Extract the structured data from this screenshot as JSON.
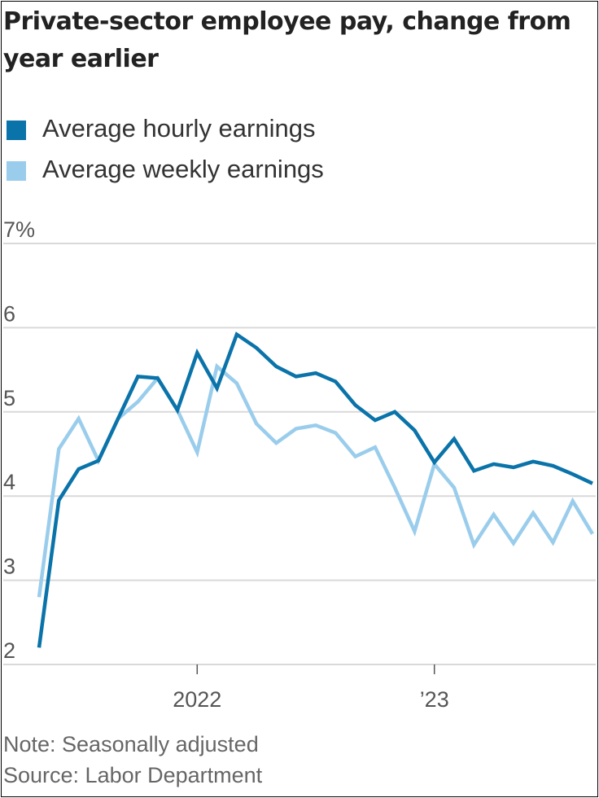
{
  "title": "Private-sector employee pay, change from year earlier",
  "legend": [
    {
      "label": "Average hourly earnings",
      "color": "#0a73a9"
    },
    {
      "label": "Average weekly earnings",
      "color": "#9acdec"
    }
  ],
  "note": "Note: Seasonally adjusted",
  "source": "Source: Labor Department",
  "chart_data": {
    "type": "line",
    "title": "Private-sector employee pay, change from year earlier",
    "x_start": "2021-05",
    "x_end": "2023-09",
    "x_ticks": [
      {
        "x": "2022-01",
        "label": "2022"
      },
      {
        "x": "2023-01",
        "label": "’23"
      }
    ],
    "y_ticks": [
      {
        "value": 7,
        "label": "7%"
      },
      {
        "value": 6,
        "label": "6"
      },
      {
        "value": 5,
        "label": "5"
      },
      {
        "value": 4,
        "label": "4"
      },
      {
        "value": 3,
        "label": "3"
      },
      {
        "value": 2,
        "label": "2"
      }
    ],
    "ylim": [
      2,
      7
    ],
    "grid": true,
    "series": [
      {
        "name": "Average hourly earnings",
        "color": "#0a73a9",
        "x": [
          "2021-05",
          "2021-06",
          "2021-07",
          "2021-08",
          "2021-09",
          "2021-10",
          "2021-11",
          "2021-12",
          "2022-01",
          "2022-02",
          "2022-03",
          "2022-04",
          "2022-05",
          "2022-06",
          "2022-07",
          "2022-08",
          "2022-09",
          "2022-10",
          "2022-11",
          "2022-12",
          "2023-01",
          "2023-02",
          "2023-03",
          "2023-04",
          "2023-05",
          "2023-06",
          "2023-07",
          "2023-08",
          "2023-09"
        ],
        "values": [
          2.2,
          3.95,
          4.32,
          4.42,
          4.92,
          5.42,
          5.4,
          5.02,
          5.7,
          5.28,
          5.92,
          5.76,
          5.54,
          5.42,
          5.46,
          5.36,
          5.08,
          4.9,
          5.0,
          4.78,
          4.4,
          4.68,
          4.3,
          4.38,
          4.34,
          4.41,
          4.36,
          4.26,
          4.15
        ]
      },
      {
        "name": "Average weekly earnings",
        "color": "#9acdec",
        "x": [
          "2021-05",
          "2021-06",
          "2021-07",
          "2021-08",
          "2021-09",
          "2021-10",
          "2021-11",
          "2021-12",
          "2022-01",
          "2022-02",
          "2022-03",
          "2022-04",
          "2022-05",
          "2022-06",
          "2022-07",
          "2022-08",
          "2022-09",
          "2022-10",
          "2022-11",
          "2022-12",
          "2023-01",
          "2023-02",
          "2023-03",
          "2023-04",
          "2023-05",
          "2023-06",
          "2023-07",
          "2023-08",
          "2023-09"
        ],
        "values": [
          2.8,
          4.56,
          4.92,
          4.42,
          4.92,
          5.12,
          5.4,
          5.02,
          4.52,
          5.54,
          5.34,
          4.86,
          4.63,
          4.8,
          4.84,
          4.75,
          4.47,
          4.58,
          4.1,
          3.58,
          4.38,
          4.1,
          3.42,
          3.78,
          3.44,
          3.8,
          3.45,
          3.94,
          3.55
        ]
      }
    ]
  }
}
